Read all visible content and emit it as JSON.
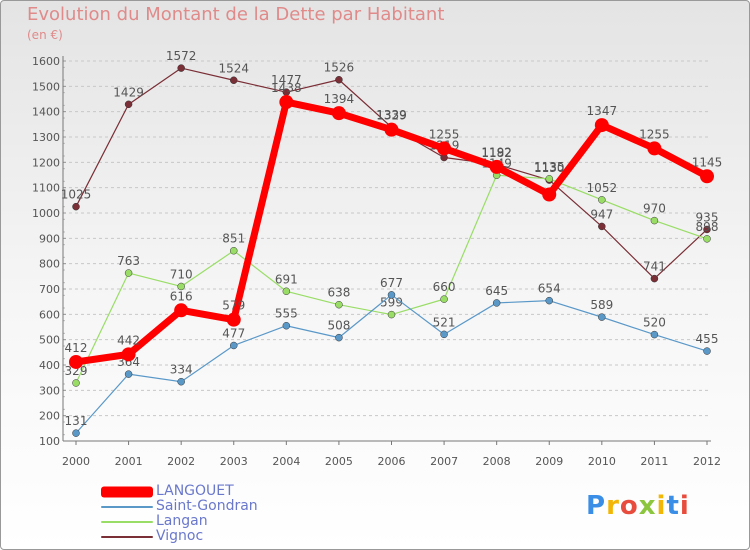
{
  "header": {
    "title": "Evolution du Montant de la Dette par Habitant",
    "subtitle": "(en €)"
  },
  "logo": {
    "text": "Proxiti",
    "colors": [
      "#3a8ee6",
      "#f2b705",
      "#e74c3c",
      "#8cc63f",
      "#f2b705",
      "#3a8ee6",
      "#e74c3c"
    ]
  },
  "chart_data": {
    "type": "line",
    "title": "Evolution du Montant de la Dette par Habitant",
    "subtitle": "(en €)",
    "x": [
      "2000",
      "2001",
      "2002",
      "2003",
      "2004",
      "2005",
      "2006",
      "2007",
      "2008",
      "2009",
      "2010",
      "2011",
      "2012"
    ],
    "ylim": [
      100,
      1600
    ],
    "yticks": [
      "100",
      "200",
      "300",
      "400",
      "500",
      "600",
      "700",
      "800",
      "900",
      "1000",
      "1100",
      "1200",
      "1300",
      "1400",
      "1500",
      "1600"
    ],
    "grid": "horizontal-dashed",
    "legend_position": "bottom-left",
    "series": [
      {
        "name": "LANGOUET",
        "color": "#ff0000",
        "values": [
          412,
          442,
          616,
          579,
          1438,
          1394,
          1329,
          1255,
          1182,
          1073,
          1347,
          1255,
          1145
        ],
        "labels": [
          "412",
          "442",
          "616",
          "579",
          "1438",
          "1394",
          "1329",
          "1255",
          "1182",
          "",
          "1347",
          "1255",
          "1145"
        ]
      },
      {
        "name": "Saint-Gondran",
        "color": "#5a98c8",
        "values": [
          131,
          364,
          334,
          477,
          555,
          508,
          677,
          521,
          645,
          654,
          589,
          520,
          455
        ],
        "labels": [
          "131",
          "364",
          "334",
          "477",
          "555",
          "508",
          "677",
          "521",
          "645",
          "654",
          "589",
          "520",
          "455"
        ]
      },
      {
        "name": "Langan",
        "color": "#99dd66",
        "values": [
          329,
          763,
          710,
          851,
          691,
          638,
          599,
          660,
          1149,
          1135,
          1052,
          970,
          898
        ],
        "labels": [
          "329",
          "763",
          "710",
          "851",
          "691",
          "638",
          "599",
          "660",
          "1149",
          "1135",
          "1052",
          "970",
          "898"
        ]
      },
      {
        "name": "Vignoc",
        "color": "#7a2e36",
        "values": [
          1025,
          1429,
          1572,
          1524,
          1477,
          1526,
          1339,
          1219,
          1192,
          1130,
          947,
          741,
          935
        ],
        "labels": [
          "1025",
          "1429",
          "1572",
          "1524",
          "1477",
          "1526",
          "1339",
          "1219",
          "1192",
          "1130",
          "947",
          "741",
          "935"
        ]
      }
    ]
  }
}
